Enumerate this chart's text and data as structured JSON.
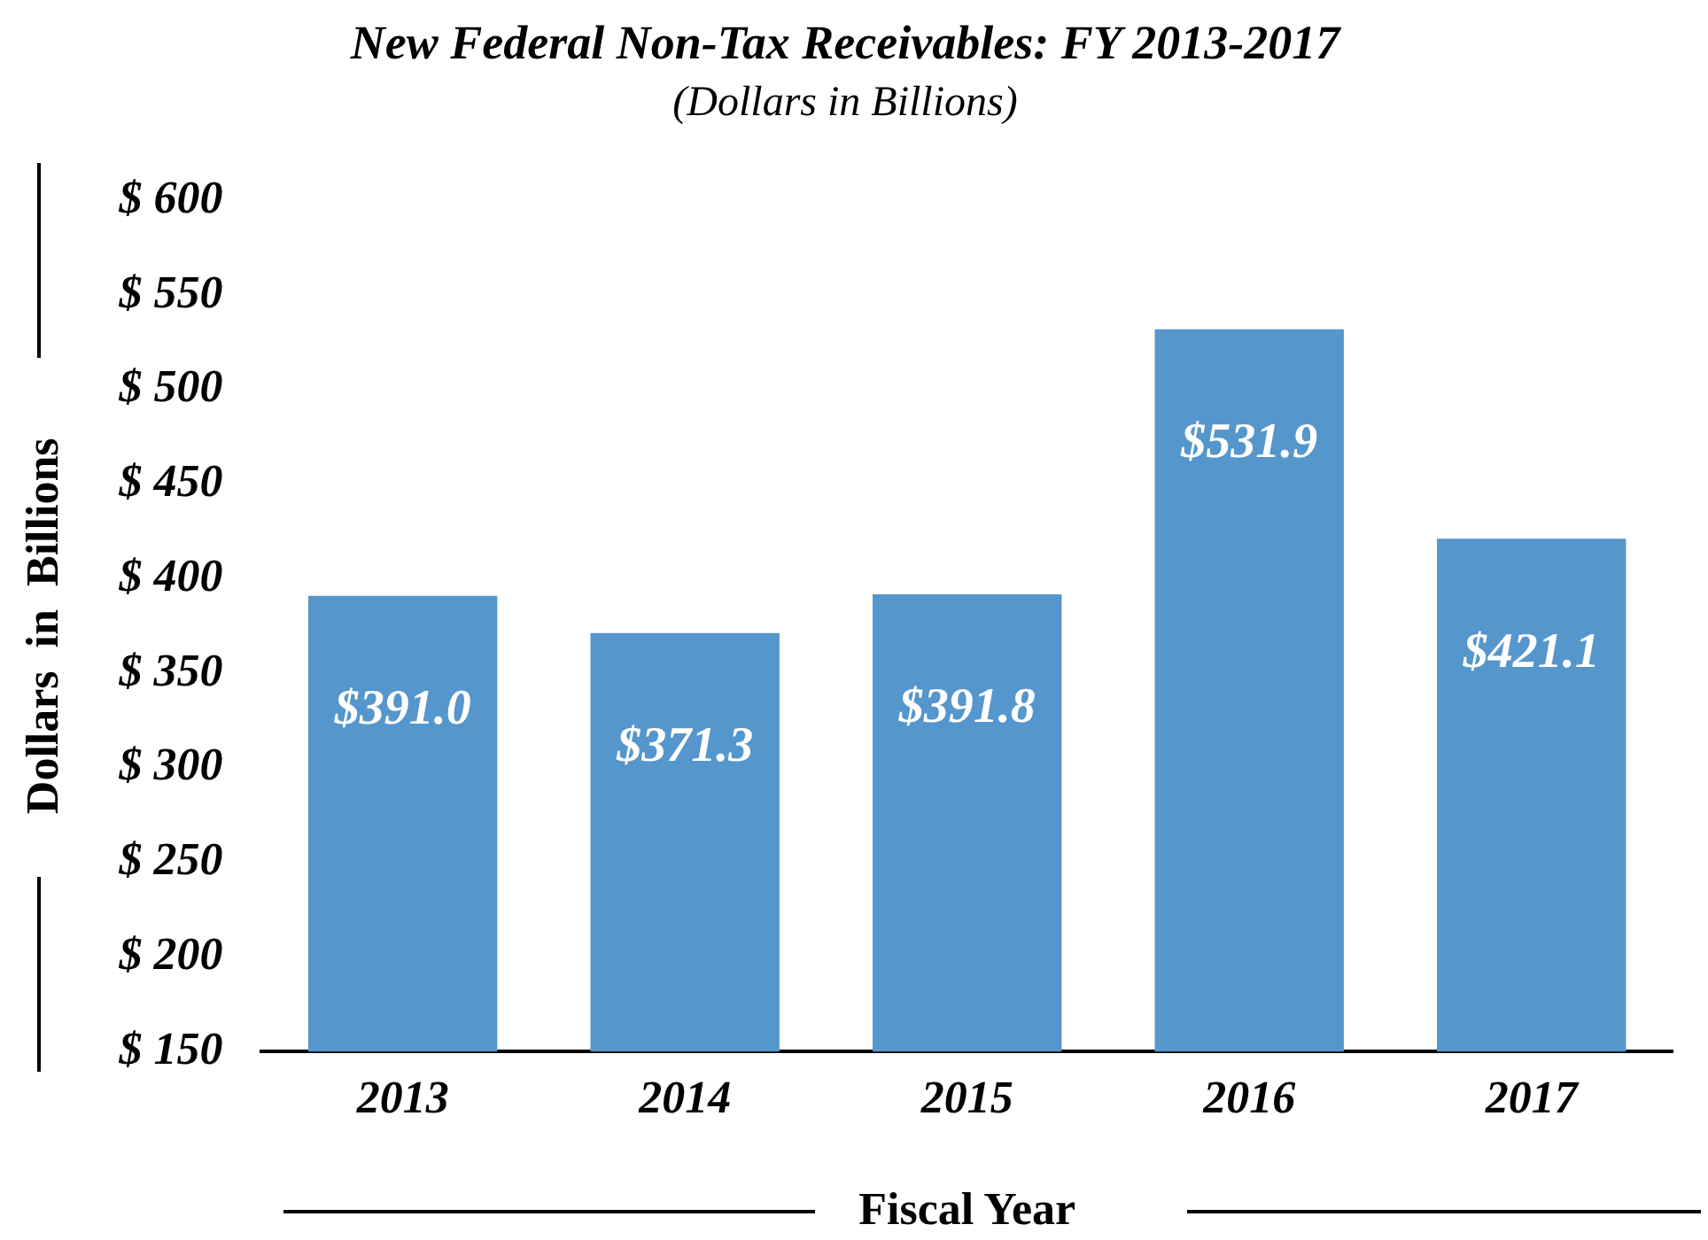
{
  "chart_data": {
    "type": "bar",
    "title": "New Federal Non-Tax Receivables: FY 2013-2017",
    "subtitle": "(Dollars in Billions)",
    "xlabel": "Fiscal Year",
    "ylabel": "Dollars  in  Billions",
    "categories": [
      "2013",
      "2014",
      "2015",
      "2016",
      "2017"
    ],
    "values": [
      391.0,
      371.3,
      391.8,
      531.9,
      421.1
    ],
    "value_labels": [
      "$391.0",
      "$371.3",
      "$391.8",
      "$531.9",
      "$421.1"
    ],
    "color": "#5596cc",
    "ylim": [
      150,
      600
    ],
    "yticks": [
      {
        "value": 150,
        "label": "$ 150"
      },
      {
        "value": 200,
        "label": "$ 200"
      },
      {
        "value": 250,
        "label": "$ 250"
      },
      {
        "value": 300,
        "label": "$ 300"
      },
      {
        "value": 350,
        "label": "$ 350"
      },
      {
        "value": 400,
        "label": "$ 400"
      },
      {
        "value": 450,
        "label": "$ 450"
      },
      {
        "value": 500,
        "label": "$ 500"
      },
      {
        "value": 550,
        "label": "$ 550"
      },
      {
        "value": 600,
        "label": "$ 600"
      }
    ],
    "grid": false,
    "legend": false
  }
}
